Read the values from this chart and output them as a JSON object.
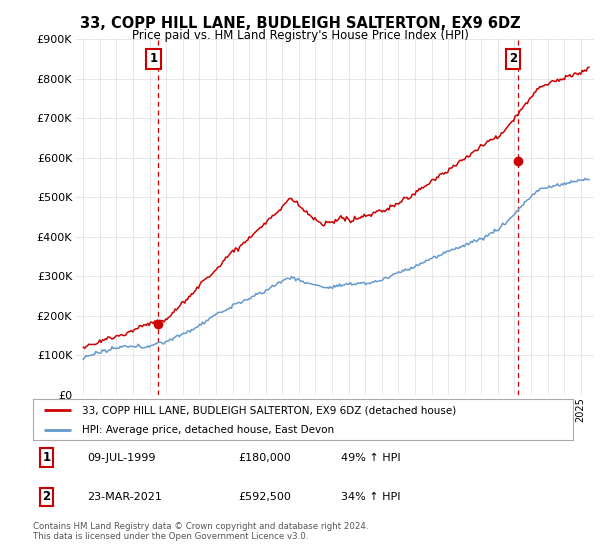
{
  "title": "33, COPP HILL LANE, BUDLEIGH SALTERTON, EX9 6DZ",
  "subtitle": "Price paid vs. HM Land Registry's House Price Index (HPI)",
  "ylim": [
    0,
    900000
  ],
  "yticks": [
    0,
    100000,
    200000,
    300000,
    400000,
    500000,
    600000,
    700000,
    800000,
    900000
  ],
  "ytick_labels": [
    "£0",
    "£100K",
    "£200K",
    "£300K",
    "£400K",
    "£500K",
    "£600K",
    "£700K",
    "£800K",
    "£900K"
  ],
  "sale1_date_x": 1999.53,
  "sale1_price": 180000,
  "sale1_label": "1",
  "sale2_date_x": 2021.22,
  "sale2_price": 592500,
  "sale2_label": "2",
  "sale_color": "#cc0000",
  "hpi_color": "#6699cc",
  "vline_color": "#cc0000",
  "annotation_box_color": "#cc0000",
  "legend_line1": "33, COPP HILL LANE, BUDLEIGH SALTERTON, EX9 6DZ (detached house)",
  "legend_line2": "HPI: Average price, detached house, East Devon",
  "table_row1": [
    "1",
    "09-JUL-1999",
    "£180,000",
    "49% ↑ HPI"
  ],
  "table_row2": [
    "2",
    "23-MAR-2021",
    "£592,500",
    "34% ↑ HPI"
  ],
  "footer": "Contains HM Land Registry data © Crown copyright and database right 2024.\nThis data is licensed under the Open Government Licence v3.0.",
  "background_color": "#ffffff",
  "grid_color": "#dddddd",
  "xlim_left": 1994.5,
  "xlim_right": 2025.8
}
